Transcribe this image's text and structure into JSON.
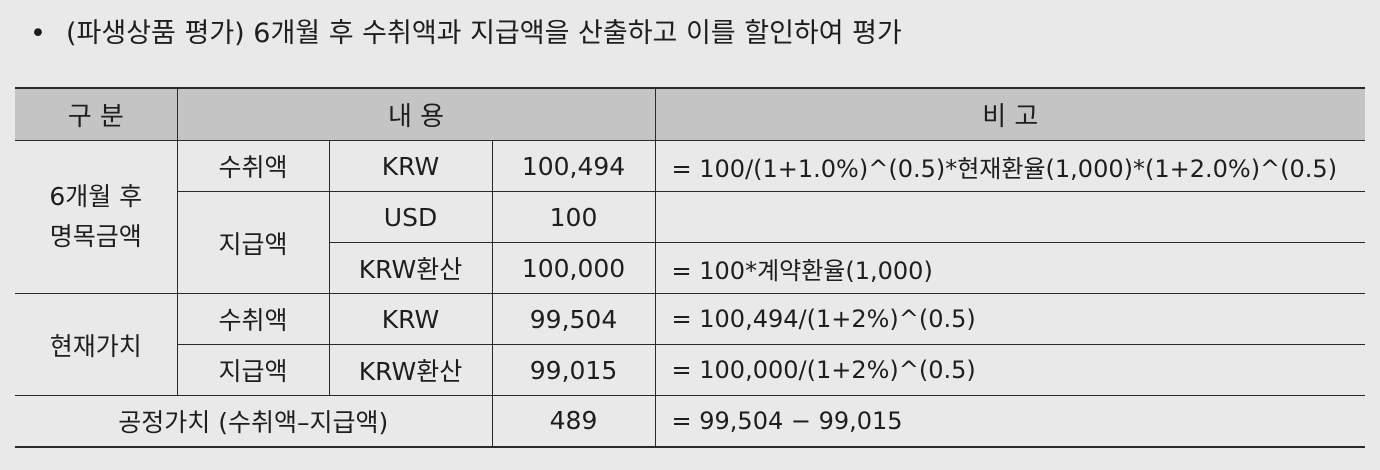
{
  "heading": {
    "bullet": "•",
    "text": "(파생상품 평가) 6개월 후 수취액과 지급액을 산출하고 이를 할인하여 평가"
  },
  "table": {
    "headers": {
      "category": "구 분",
      "content": "내 용",
      "remarks": "비 고"
    },
    "future": {
      "label_line1": "6개월 후",
      "label_line2": "명목금액",
      "receive_label": "수취액",
      "receive_currency": "KRW",
      "receive_amount": "100,494",
      "receive_note": "= 100/(1+1.0%)^(0.5)*현재환율(1,000)*(1+2.0%)^(0.5)",
      "pay_label": "지급액",
      "pay_currency_usd": "USD",
      "pay_amount_usd": "100",
      "pay_note_usd": "",
      "pay_currency_krw": "KRW환산",
      "pay_amount_krw": "100,000",
      "pay_note_krw": "= 100*계약환율(1,000)"
    },
    "present": {
      "label": "현재가치",
      "receive_label": "수취액",
      "receive_currency": "KRW",
      "receive_amount": "99,504",
      "receive_note": "= 100,494/(1+2%)^(0.5)",
      "pay_label": "지급액",
      "pay_currency": "KRW환산",
      "pay_amount": "99,015",
      "pay_note": "= 100,000/(1+2%)^(0.5)"
    },
    "fair_value": {
      "label": "공정가치 (수취액–지급액)",
      "amount": "489",
      "note": "= 99,504 − 99,015"
    }
  }
}
